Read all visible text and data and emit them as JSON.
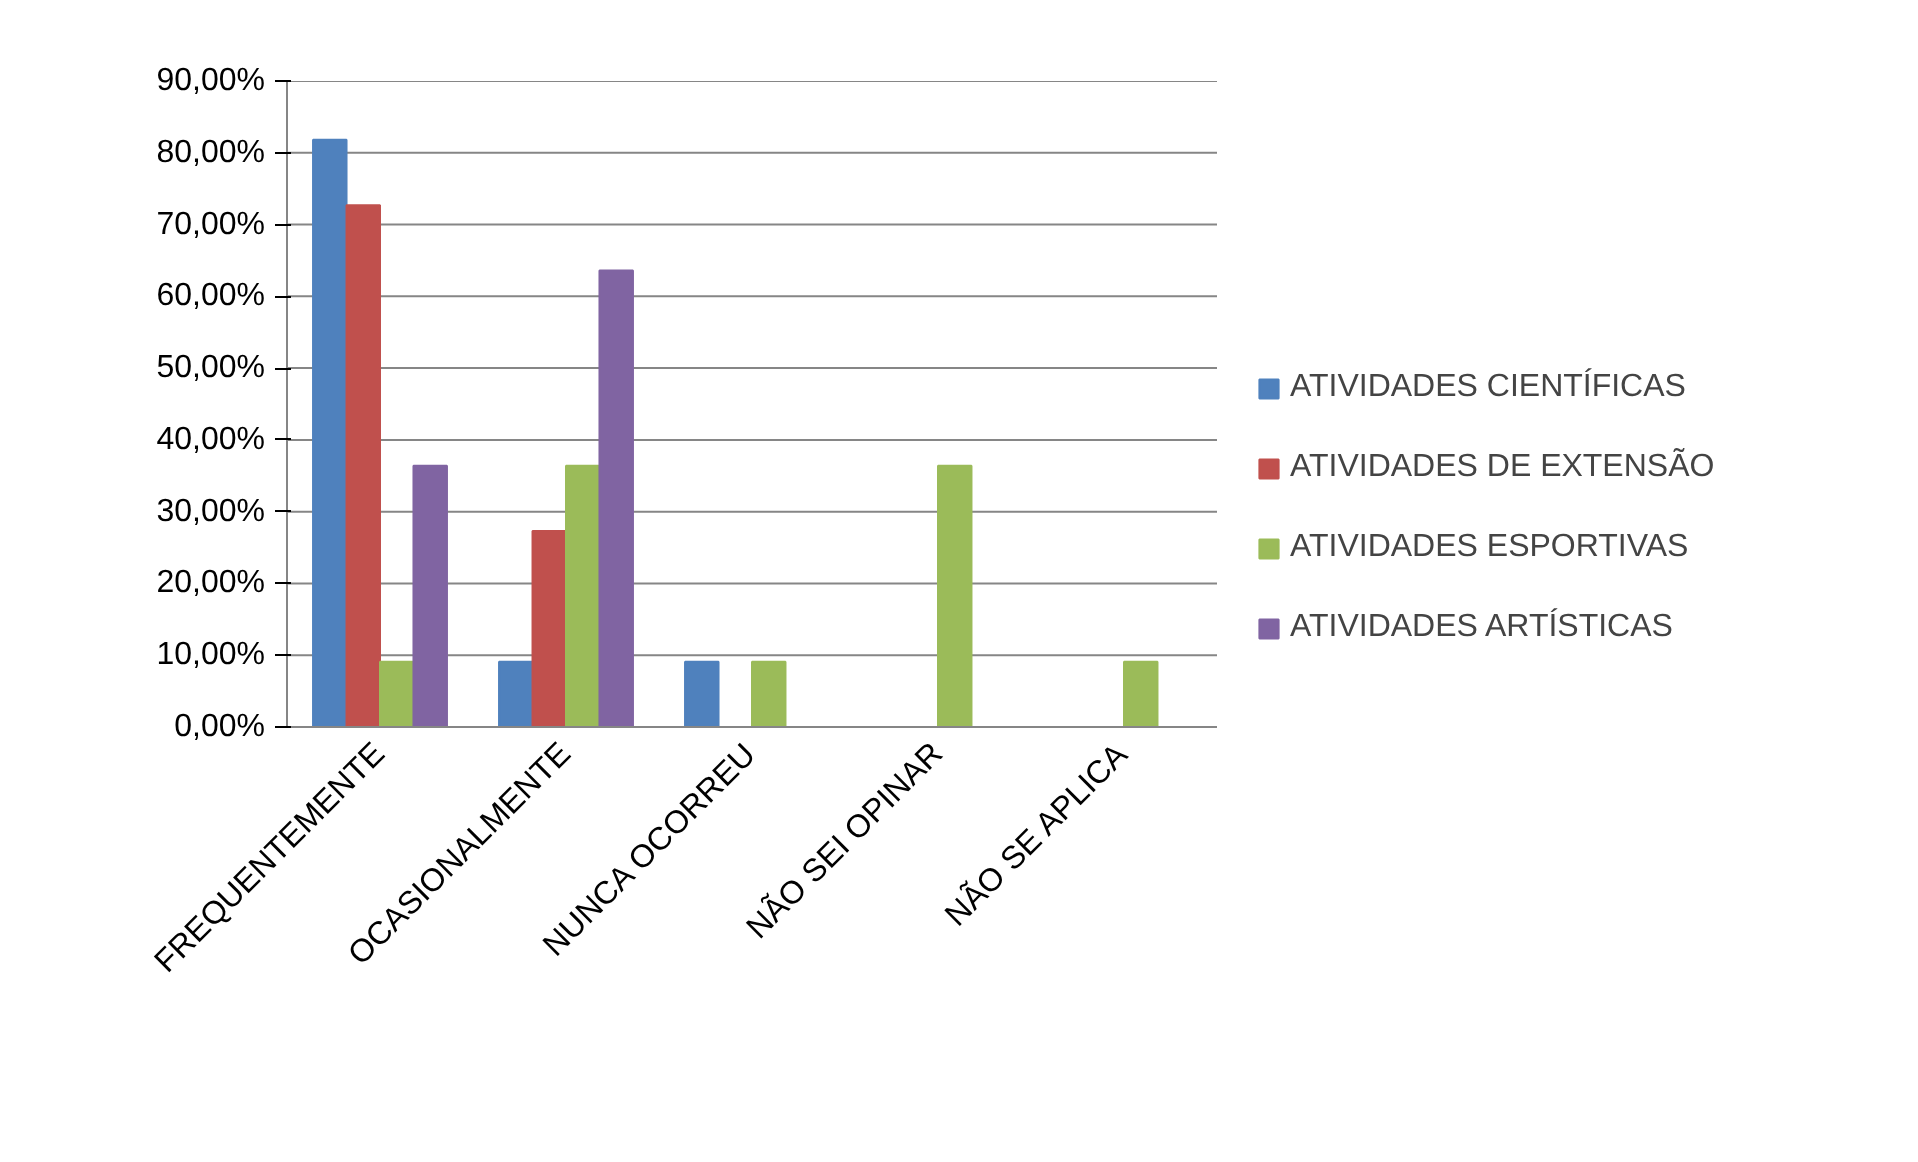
{
  "chart_data": {
    "type": "bar",
    "categories": [
      "FREQUENTEMENTE",
      "OCASIONALMENTE",
      "NUNCA OCORREU",
      "NÃO SEI OPINAR",
      "NÃO SE APLICA"
    ],
    "series": [
      {
        "name": "ATIVIDADES CIENTÍFICAS",
        "color": "#4f81bd",
        "values": [
          81.8,
          9.1,
          9.1,
          null,
          null
        ]
      },
      {
        "name": "ATIVIDADES DE EXTENSÃO",
        "color": "#c0504d",
        "values": [
          72.7,
          27.3,
          null,
          null,
          null
        ]
      },
      {
        "name": "ATIVIDADES ESPORTIVAS",
        "color": "#9bbb59",
        "values": [
          9.1,
          36.4,
          9.1,
          36.4,
          9.1
        ]
      },
      {
        "name": "ATIVIDADES ARTÍSTICAS",
        "color": "#8064a2",
        "values": [
          36.4,
          63.6,
          null,
          null,
          null
        ]
      }
    ],
    "ylim": [
      0,
      90
    ],
    "yticks": [
      {
        "value": 0,
        "label": "0,00%"
      },
      {
        "value": 10,
        "label": "10,00%"
      },
      {
        "value": 20,
        "label": "20,00%"
      },
      {
        "value": 30,
        "label": "30,00%"
      },
      {
        "value": 40,
        "label": "40,00%"
      },
      {
        "value": 50,
        "label": "50,00%"
      },
      {
        "value": 60,
        "label": "60,00%"
      },
      {
        "value": 70,
        "label": "70,00%"
      },
      {
        "value": 80,
        "label": "80,00%"
      },
      {
        "value": 90,
        "label": "90,00%"
      }
    ],
    "grid": "y",
    "legend": "right"
  }
}
